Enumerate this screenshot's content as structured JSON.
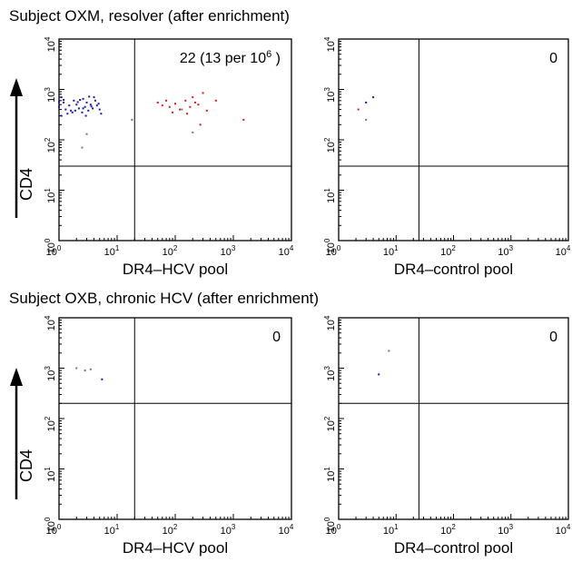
{
  "figure": {
    "sections": [
      {
        "title": "Subject OXM, resolver (after enrichment)",
        "y_label": "CD4"
      },
      {
        "title": "Subject OXB, chronic HCV (after enrichment)",
        "y_label": "CD4"
      }
    ]
  },
  "chart_data": [
    {
      "type": "scatter",
      "section": "Subject OXM, resolver (after enrichment)",
      "xlabel": "DR4–HCV pool",
      "ylabel": "CD4",
      "xscale": "log",
      "yscale": "log",
      "xlim": [
        1,
        10000
      ],
      "ylim": [
        1,
        10000
      ],
      "gate": {
        "x": 20,
        "y": 30
      },
      "annotation": {
        "text": "22 (13 per 10",
        "superscript": "6",
        "suffix": " )"
      },
      "series": [
        {
          "color": "#1a1aa0",
          "points": [
            [
              1.1,
              700
            ],
            [
              1.2,
              550
            ],
            [
              1.0,
              450
            ],
            [
              1.3,
              400
            ],
            [
              1.5,
              480
            ],
            [
              1.6,
              380
            ],
            [
              1.8,
              600
            ],
            [
              2.0,
              500
            ],
            [
              2.2,
              420
            ],
            [
              2.5,
              350
            ],
            [
              2.6,
              650
            ],
            [
              2.8,
              450
            ],
            [
              3.0,
              550
            ],
            [
              3.2,
              380
            ],
            [
              3.5,
              500
            ],
            [
              3.8,
              420
            ],
            [
              4.0,
              700
            ],
            [
              4.2,
              600
            ],
            [
              4.5,
              480
            ],
            [
              5.0,
              400
            ],
            [
              1.1,
              300
            ],
            [
              1.4,
              330
            ],
            [
              1.7,
              350
            ],
            [
              2.3,
              620
            ],
            [
              3.3,
              720
            ],
            [
              4.8,
              520
            ],
            [
              2.9,
              300
            ],
            [
              1.2,
              620
            ],
            [
              1.9,
              380
            ],
            [
              2.1,
              560
            ],
            [
              3.6,
              460
            ],
            [
              5.3,
              330
            ],
            [
              1.0,
              560
            ],
            [
              2.6,
              420
            ]
          ]
        },
        {
          "color": "#d41a1a",
          "points": [
            [
              50,
              550
            ],
            [
              60,
              480
            ],
            [
              70,
              600
            ],
            [
              80,
              450
            ],
            [
              100,
              520
            ],
            [
              120,
              400
            ],
            [
              150,
              600
            ],
            [
              200,
              700
            ],
            [
              250,
              500
            ],
            [
              300,
              850
            ],
            [
              350,
              380
            ],
            [
              500,
              600
            ],
            [
              1500,
              250
            ],
            [
              90,
              350
            ],
            [
              180,
              450
            ],
            [
              160,
              330
            ],
            [
              220,
              550
            ],
            [
              270,
              200
            ]
          ]
        },
        {
          "color": "#777777",
          "points": [
            [
              2.5,
              70
            ],
            [
              18,
              250
            ],
            [
              3.0,
              130
            ],
            [
              130,
              400
            ],
            [
              200,
              140
            ]
          ]
        }
      ]
    },
    {
      "type": "scatter",
      "section": "Subject OXM, resolver (after enrichment)",
      "xlabel": "DR4–control pool",
      "ylabel": "",
      "xscale": "log",
      "yscale": "log",
      "xlim": [
        1,
        10000
      ],
      "ylim": [
        1,
        10000
      ],
      "gate": {
        "x": 25,
        "y": 30
      },
      "annotation": {
        "text": "0"
      },
      "series": [
        {
          "color": "#1a1aa0",
          "points": [
            [
              3.0,
              550
            ],
            [
              4.0,
              700
            ]
          ]
        },
        {
          "color": "#d41a1a",
          "points": [
            [
              2.2,
              400
            ]
          ]
        },
        {
          "color": "#777777",
          "points": [
            [
              3.0,
              250
            ],
            [
              1.0,
              80
            ]
          ]
        }
      ]
    },
    {
      "type": "scatter",
      "section": "Subject OXB, chronic HCV (after enrichment)",
      "xlabel": "DR4–HCV pool",
      "ylabel": "CD4",
      "xscale": "log",
      "yscale": "log",
      "xlim": [
        1,
        10000
      ],
      "ylim": [
        1,
        10000
      ],
      "gate": {
        "x": 20,
        "y": 200
      },
      "annotation": {
        "text": "0"
      },
      "series": [
        {
          "color": "#1a1aa0",
          "points": [
            [
              5.5,
              600
            ]
          ]
        },
        {
          "color": "#777777",
          "points": [
            [
              2.0,
              1000
            ],
            [
              2.8,
              900
            ],
            [
              3.5,
              950
            ]
          ]
        }
      ]
    },
    {
      "type": "scatter",
      "section": "Subject OXB, chronic HCV (after enrichment)",
      "xlabel": "DR4–control pool",
      "ylabel": "",
      "xscale": "log",
      "yscale": "log",
      "xlim": [
        1,
        10000
      ],
      "ylim": [
        1,
        10000
      ],
      "gate": {
        "x": 25,
        "y": 200
      },
      "annotation": {
        "text": "0"
      },
      "series": [
        {
          "color": "#1a1aa0",
          "points": [
            [
              5.0,
              750
            ]
          ]
        },
        {
          "color": "#777777",
          "points": [
            [
              7.5,
              2200
            ]
          ]
        }
      ]
    }
  ]
}
